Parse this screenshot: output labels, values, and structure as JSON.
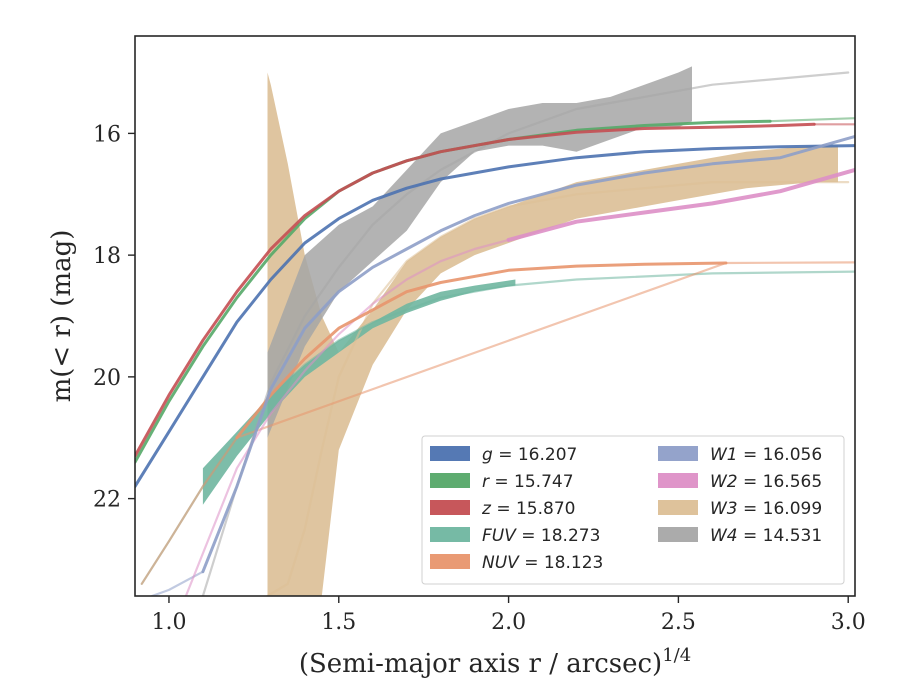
{
  "chart_data": {
    "type": "line",
    "xlabel": "(Semi-major axis r / arcsec)",
    "xlabel_superscript": "1/4",
    "ylabel": "m(< r) (mag)",
    "xlim": [
      0.9,
      3.02
    ],
    "ylim": [
      23.6,
      14.4
    ],
    "y_inverted": true,
    "x_ticks": [
      "1.0",
      "1.5",
      "2.0",
      "2.5",
      "3.0"
    ],
    "y_ticks": [
      "16",
      "18",
      "20",
      "22"
    ],
    "grid": false,
    "legend_position": "lower-right",
    "legend": [
      {
        "band": "g",
        "value": "16.207",
        "color": "#4c72b0"
      },
      {
        "band": "r",
        "value": "15.747",
        "color": "#55a868"
      },
      {
        "band": "z",
        "value": "15.870",
        "color": "#c44e52"
      },
      {
        "band": "FUV",
        "value": "18.273",
        "color": "#6fb6a0"
      },
      {
        "band": "NUV",
        "value": "18.123",
        "color": "#e8956d"
      },
      {
        "band": "W1",
        "value": "16.056",
        "color": "#8e9ec8"
      },
      {
        "band": "W2",
        "value": "16.565",
        "color": "#dd8fc6"
      },
      {
        "band": "W3",
        "value": "16.099",
        "color": "#dcbf96"
      },
      {
        "band": "W4",
        "value": "14.531",
        "color": "#a6a6a6"
      }
    ],
    "series": [
      {
        "band": "W3",
        "color": "#dcbf96",
        "band_x": [
          1.29,
          1.3,
          1.35,
          1.4,
          1.45,
          1.5,
          1.6,
          1.7,
          1.8,
          1.9,
          2.0,
          2.1,
          2.2,
          2.3,
          2.4,
          2.5,
          2.6,
          2.7,
          2.8,
          2.9,
          2.97
        ],
        "band_upper": [
          15.0,
          15.2,
          16.5,
          18.0,
          19.0,
          19.6,
          18.9,
          18.1,
          17.7,
          17.4,
          17.2,
          17.0,
          16.8,
          16.7,
          16.6,
          16.5,
          16.4,
          16.3,
          16.25,
          16.2,
          16.2
        ],
        "band_lower": [
          23.6,
          23.6,
          23.6,
          23.6,
          23.6,
          21.2,
          19.8,
          18.9,
          18.3,
          18.0,
          17.8,
          17.6,
          17.4,
          17.3,
          17.2,
          17.1,
          17.0,
          16.9,
          16.85,
          16.8,
          16.8
        ],
        "model_x": [
          1.29,
          1.35,
          1.4,
          1.45,
          1.5,
          1.6,
          1.7,
          1.8,
          1.9,
          2.0,
          2.2,
          2.4,
          2.6,
          2.8,
          3.0
        ],
        "model_y": [
          23.6,
          23.4,
          22.5,
          21.2,
          20.0,
          18.8,
          18.1,
          17.7,
          17.4,
          17.2,
          17.0,
          16.9,
          16.8,
          16.8,
          16.8
        ]
      },
      {
        "band": "W4",
        "color": "#a6a6a6",
        "band_x": [
          1.29,
          1.4,
          1.5,
          1.6,
          1.7,
          1.8,
          1.9,
          2.0,
          2.1,
          2.2,
          2.3,
          2.4,
          2.5,
          2.54
        ],
        "band_upper": [
          19.6,
          18.0,
          17.5,
          17.2,
          16.6,
          16.0,
          15.8,
          15.6,
          15.5,
          15.5,
          15.4,
          15.2,
          15.0,
          14.9
        ],
        "band_lower": [
          21.0,
          19.5,
          18.6,
          18.1,
          17.6,
          16.8,
          16.3,
          16.2,
          16.2,
          16.3,
          16.1,
          15.9,
          15.9,
          15.8
        ],
        "model_x": [
          1.1,
          1.2,
          1.3,
          1.4,
          1.5,
          1.6,
          1.7,
          1.8,
          2.0,
          2.2,
          2.4,
          2.6,
          2.8,
          3.0
        ],
        "model_y": [
          23.6,
          21.8,
          20.1,
          19.0,
          18.2,
          17.5,
          17.0,
          16.6,
          16.0,
          15.6,
          15.4,
          15.2,
          15.1,
          15.0
        ]
      },
      {
        "band": "g",
        "color": "#4c72b0",
        "data_x": [
          0.9,
          1.0,
          1.1,
          1.2,
          1.3,
          1.4,
          1.5,
          1.6,
          1.7,
          1.8,
          2.0,
          2.2,
          2.4,
          2.6,
          2.8,
          3.02
        ],
        "data_y": [
          21.8,
          20.9,
          20.0,
          19.1,
          18.4,
          17.8,
          17.4,
          17.1,
          16.9,
          16.75,
          16.55,
          16.4,
          16.3,
          16.25,
          16.22,
          16.2
        ]
      },
      {
        "band": "r",
        "color": "#55a868",
        "data_x": [
          0.9,
          1.0,
          1.1,
          1.2,
          1.3,
          1.4,
          1.5,
          1.6,
          1.7,
          1.8,
          2.0,
          2.2,
          2.4,
          2.6,
          2.77
        ],
        "data_y": [
          21.4,
          20.4,
          19.5,
          18.7,
          18.0,
          17.4,
          16.95,
          16.65,
          16.45,
          16.3,
          16.1,
          15.95,
          15.87,
          15.82,
          15.8
        ],
        "model_x": [
          2.77,
          3.02
        ],
        "model_y": [
          15.8,
          15.75
        ]
      },
      {
        "band": "z",
        "color": "#c44e52",
        "data_x": [
          0.9,
          1.0,
          1.1,
          1.2,
          1.3,
          1.4,
          1.5,
          1.6,
          1.7,
          1.8,
          2.0,
          2.2,
          2.4,
          2.6,
          2.8,
          2.9
        ],
        "data_y": [
          21.3,
          20.3,
          19.4,
          18.6,
          17.9,
          17.35,
          16.95,
          16.65,
          16.45,
          16.3,
          16.1,
          15.98,
          15.92,
          15.9,
          15.87,
          15.85
        ],
        "model_x": [
          2.9,
          3.02
        ],
        "model_y": [
          15.85,
          15.85
        ]
      },
      {
        "band": "FUV",
        "color": "#6fb6a0",
        "band_x": [
          1.1,
          1.2,
          1.3,
          1.4,
          1.5,
          1.6,
          1.7,
          1.8,
          1.9,
          2.02
        ],
        "band_upper": [
          21.5,
          20.9,
          20.3,
          19.8,
          19.4,
          19.1,
          18.8,
          18.6,
          18.5,
          18.4
        ],
        "band_lower": [
          22.1,
          21.3,
          20.6,
          20.0,
          19.6,
          19.2,
          18.95,
          18.75,
          18.6,
          18.5
        ],
        "model_x": [
          0.92,
          1.0,
          1.1,
          1.2,
          1.3,
          1.4,
          1.5,
          1.6,
          1.8,
          2.0,
          2.2,
          2.6,
          3.02
        ],
        "model_y": [
          23.4,
          22.7,
          21.8,
          21.0,
          20.3,
          19.8,
          19.4,
          19.1,
          18.7,
          18.5,
          18.4,
          18.3,
          18.27
        ]
      },
      {
        "band": "NUV",
        "color": "#e8956d",
        "data_x": [
          1.2,
          1.3,
          1.4,
          1.5,
          1.6,
          1.7,
          1.8,
          2.0,
          2.2,
          2.4,
          2.64
        ],
        "data_y": [
          21.0,
          20.3,
          19.7,
          19.2,
          18.9,
          18.6,
          18.45,
          18.25,
          18.18,
          18.15,
          18.13
        ],
        "model_x": [
          0.92,
          1.0,
          1.1,
          1.2,
          2.64,
          3.02
        ],
        "model_y": [
          23.4,
          22.7,
          21.8,
          21.0,
          18.13,
          18.12
        ]
      },
      {
        "band": "W1",
        "color": "#8e9ec8",
        "data_x": [
          1.1,
          1.2,
          1.3,
          1.4,
          1.5,
          1.6,
          1.7,
          1.8,
          1.9,
          2.0,
          2.2,
          2.4,
          2.6,
          2.8,
          3.02
        ],
        "data_y": [
          23.2,
          21.8,
          20.2,
          19.2,
          18.6,
          18.2,
          17.9,
          17.6,
          17.35,
          17.15,
          16.85,
          16.65,
          16.5,
          16.4,
          16.05
        ],
        "model_x": [
          0.95,
          1.0,
          1.1
        ],
        "model_y": [
          23.6,
          23.5,
          23.2
        ]
      },
      {
        "band": "W2",
        "color": "#dd8fc6",
        "data_x": [
          2.0,
          2.2,
          2.4,
          2.6,
          2.8,
          3.02
        ],
        "data_y": [
          17.75,
          17.45,
          17.3,
          17.15,
          16.95,
          16.6
        ],
        "model_x": [
          1.05,
          1.1,
          1.2,
          1.3,
          1.4,
          1.5,
          1.6,
          1.7,
          1.8,
          1.9,
          2.0
        ],
        "model_y": [
          23.6,
          22.9,
          21.5,
          20.6,
          19.9,
          19.3,
          18.8,
          18.4,
          18.1,
          17.9,
          17.75
        ]
      }
    ]
  }
}
